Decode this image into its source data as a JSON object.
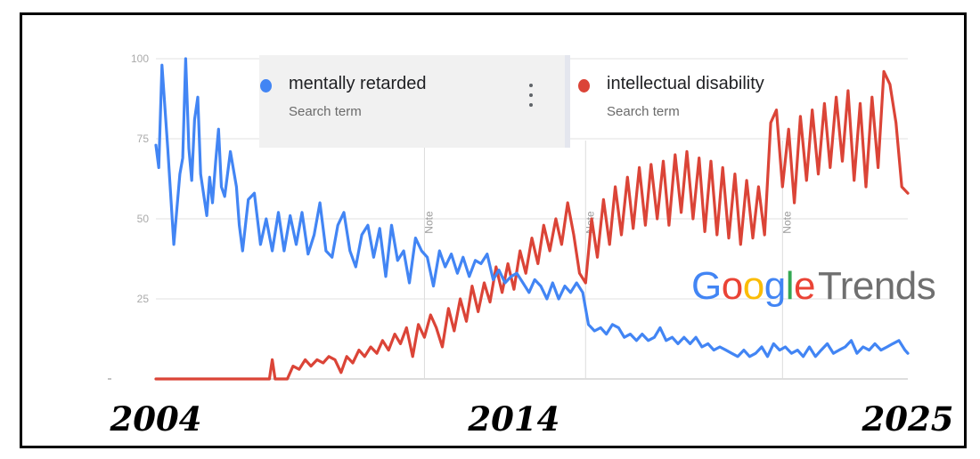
{
  "legend": [
    {
      "term": "mentally retarded",
      "subtitle": "Search term",
      "color": "#4285f4"
    },
    {
      "term": "intellectual disability",
      "subtitle": "Search term",
      "color": "#db4437"
    }
  ],
  "menu_icon": "more-vert-icon",
  "logo": {
    "google_letters": [
      "G",
      "o",
      "o",
      "g",
      "l",
      "e"
    ],
    "google_colors": [
      "#4285f4",
      "#ea4335",
      "#fbbc05",
      "#4285f4",
      "#34a853",
      "#ea4335"
    ],
    "trends": "Trends"
  },
  "year_labels": [
    {
      "text": "2004",
      "year": 2004.0
    },
    {
      "text": "2014",
      "year": 2014.0
    },
    {
      "text": "2025",
      "year": 2025.0
    }
  ],
  "chart_data": {
    "type": "line",
    "x_unit": "year",
    "xlim": [
      2004.0,
      2025.0
    ],
    "ylim": [
      0,
      100
    ],
    "y_ticks": [
      25,
      50,
      75,
      100
    ],
    "y_tick_labels": [
      "25",
      "50",
      "75",
      "100"
    ],
    "grid": true,
    "legend_position": "top",
    "notes": [
      {
        "label": "Note",
        "x": 2011.5
      },
      {
        "label": "Note",
        "x": 2016.0
      },
      {
        "label": "Note",
        "x": 2021.5
      }
    ],
    "series": [
      {
        "name": "mentally retarded",
        "color": "#4285f4",
        "points": [
          [
            2004.0,
            73
          ],
          [
            2004.08,
            66
          ],
          [
            2004.17,
            98
          ],
          [
            2004.33,
            72
          ],
          [
            2004.5,
            42
          ],
          [
            2004.67,
            64
          ],
          [
            2004.75,
            69
          ],
          [
            2004.83,
            100
          ],
          [
            2004.92,
            72
          ],
          [
            2005.0,
            62
          ],
          [
            2005.08,
            81
          ],
          [
            2005.17,
            88
          ],
          [
            2005.25,
            64
          ],
          [
            2005.42,
            51
          ],
          [
            2005.5,
            63
          ],
          [
            2005.58,
            55
          ],
          [
            2005.67,
            68
          ],
          [
            2005.75,
            78
          ],
          [
            2005.83,
            60
          ],
          [
            2005.92,
            57
          ],
          [
            2006.08,
            71
          ],
          [
            2006.25,
            60
          ],
          [
            2006.33,
            48
          ],
          [
            2006.42,
            40
          ],
          [
            2006.58,
            56
          ],
          [
            2006.75,
            58
          ],
          [
            2006.92,
            42
          ],
          [
            2007.08,
            50
          ],
          [
            2007.25,
            40
          ],
          [
            2007.42,
            52
          ],
          [
            2007.58,
            40
          ],
          [
            2007.75,
            51
          ],
          [
            2007.92,
            42
          ],
          [
            2008.08,
            52
          ],
          [
            2008.25,
            39
          ],
          [
            2008.42,
            45
          ],
          [
            2008.58,
            55
          ],
          [
            2008.75,
            40
          ],
          [
            2008.92,
            38
          ],
          [
            2009.08,
            48
          ],
          [
            2009.25,
            52
          ],
          [
            2009.42,
            40
          ],
          [
            2009.58,
            35
          ],
          [
            2009.75,
            45
          ],
          [
            2009.92,
            48
          ],
          [
            2010.08,
            38
          ],
          [
            2010.25,
            47
          ],
          [
            2010.42,
            32
          ],
          [
            2010.58,
            48
          ],
          [
            2010.75,
            37
          ],
          [
            2010.92,
            40
          ],
          [
            2011.08,
            30
          ],
          [
            2011.25,
            44
          ],
          [
            2011.42,
            40
          ],
          [
            2011.58,
            38
          ],
          [
            2011.75,
            29
          ],
          [
            2011.92,
            40
          ],
          [
            2012.08,
            35
          ],
          [
            2012.25,
            39
          ],
          [
            2012.42,
            33
          ],
          [
            2012.58,
            38
          ],
          [
            2012.75,
            32
          ],
          [
            2012.92,
            37
          ],
          [
            2013.08,
            36
          ],
          [
            2013.25,
            39
          ],
          [
            2013.42,
            31
          ],
          [
            2013.58,
            34
          ],
          [
            2013.75,
            30
          ],
          [
            2013.92,
            32
          ],
          [
            2014.08,
            33
          ],
          [
            2014.25,
            30
          ],
          [
            2014.42,
            27
          ],
          [
            2014.58,
            31
          ],
          [
            2014.75,
            29
          ],
          [
            2014.92,
            25
          ],
          [
            2015.08,
            30
          ],
          [
            2015.25,
            25
          ],
          [
            2015.42,
            29
          ],
          [
            2015.58,
            27
          ],
          [
            2015.75,
            30
          ],
          [
            2015.92,
            27
          ],
          [
            2016.08,
            17
          ],
          [
            2016.25,
            15
          ],
          [
            2016.42,
            16
          ],
          [
            2016.58,
            14
          ],
          [
            2016.75,
            17
          ],
          [
            2016.92,
            16
          ],
          [
            2017.08,
            13
          ],
          [
            2017.25,
            14
          ],
          [
            2017.42,
            12
          ],
          [
            2017.58,
            14
          ],
          [
            2017.75,
            12
          ],
          [
            2017.92,
            13
          ],
          [
            2018.08,
            16
          ],
          [
            2018.25,
            12
          ],
          [
            2018.42,
            13
          ],
          [
            2018.58,
            11
          ],
          [
            2018.75,
            13
          ],
          [
            2018.92,
            11
          ],
          [
            2019.08,
            13
          ],
          [
            2019.25,
            10
          ],
          [
            2019.42,
            11
          ],
          [
            2019.58,
            9
          ],
          [
            2019.75,
            10
          ],
          [
            2019.92,
            9
          ],
          [
            2020.08,
            8
          ],
          [
            2020.25,
            7
          ],
          [
            2020.42,
            9
          ],
          [
            2020.58,
            7
          ],
          [
            2020.75,
            8
          ],
          [
            2020.92,
            10
          ],
          [
            2021.08,
            7
          ],
          [
            2021.25,
            11
          ],
          [
            2021.42,
            9
          ],
          [
            2021.58,
            10
          ],
          [
            2021.75,
            8
          ],
          [
            2021.92,
            9
          ],
          [
            2022.08,
            7
          ],
          [
            2022.25,
            10
          ],
          [
            2022.42,
            7
          ],
          [
            2022.58,
            9
          ],
          [
            2022.75,
            11
          ],
          [
            2022.92,
            8
          ],
          [
            2023.08,
            9
          ],
          [
            2023.25,
            10
          ],
          [
            2023.42,
            12
          ],
          [
            2023.58,
            8
          ],
          [
            2023.75,
            10
          ],
          [
            2023.92,
            9
          ],
          [
            2024.08,
            11
          ],
          [
            2024.25,
            9
          ],
          [
            2024.42,
            10
          ],
          [
            2024.58,
            11
          ],
          [
            2024.75,
            12
          ],
          [
            2024.92,
            9
          ],
          [
            2025.0,
            8
          ]
        ]
      },
      {
        "name": "intellectual disability",
        "color": "#db4437",
        "points": [
          [
            2004.0,
            0
          ],
          [
            2004.5,
            0
          ],
          [
            2005.0,
            0
          ],
          [
            2005.5,
            0
          ],
          [
            2006.0,
            0
          ],
          [
            2006.5,
            0
          ],
          [
            2007.0,
            0
          ],
          [
            2007.17,
            0
          ],
          [
            2007.25,
            6
          ],
          [
            2007.33,
            0
          ],
          [
            2007.5,
            0
          ],
          [
            2007.67,
            0
          ],
          [
            2007.83,
            4
          ],
          [
            2008.0,
            3
          ],
          [
            2008.17,
            6
          ],
          [
            2008.33,
            4
          ],
          [
            2008.5,
            6
          ],
          [
            2008.67,
            5
          ],
          [
            2008.83,
            7
          ],
          [
            2009.0,
            6
          ],
          [
            2009.17,
            2
          ],
          [
            2009.33,
            7
          ],
          [
            2009.5,
            5
          ],
          [
            2009.67,
            9
          ],
          [
            2009.83,
            7
          ],
          [
            2010.0,
            10
          ],
          [
            2010.17,
            8
          ],
          [
            2010.33,
            12
          ],
          [
            2010.5,
            9
          ],
          [
            2010.67,
            14
          ],
          [
            2010.83,
            11
          ],
          [
            2011.0,
            16
          ],
          [
            2011.17,
            7
          ],
          [
            2011.33,
            17
          ],
          [
            2011.5,
            13
          ],
          [
            2011.67,
            20
          ],
          [
            2011.83,
            16
          ],
          [
            2012.0,
            10
          ],
          [
            2012.17,
            22
          ],
          [
            2012.33,
            15
          ],
          [
            2012.5,
            25
          ],
          [
            2012.67,
            18
          ],
          [
            2012.83,
            29
          ],
          [
            2013.0,
            21
          ],
          [
            2013.17,
            30
          ],
          [
            2013.33,
            24
          ],
          [
            2013.5,
            35
          ],
          [
            2013.67,
            27
          ],
          [
            2013.83,
            36
          ],
          [
            2014.0,
            28
          ],
          [
            2014.17,
            40
          ],
          [
            2014.33,
            33
          ],
          [
            2014.5,
            44
          ],
          [
            2014.67,
            36
          ],
          [
            2014.83,
            48
          ],
          [
            2015.0,
            40
          ],
          [
            2015.17,
            50
          ],
          [
            2015.33,
            42
          ],
          [
            2015.5,
            55
          ],
          [
            2015.67,
            45
          ],
          [
            2015.83,
            33
          ],
          [
            2016.0,
            30
          ],
          [
            2016.17,
            50
          ],
          [
            2016.33,
            38
          ],
          [
            2016.5,
            56
          ],
          [
            2016.67,
            42
          ],
          [
            2016.83,
            60
          ],
          [
            2017.0,
            45
          ],
          [
            2017.17,
            63
          ],
          [
            2017.33,
            47
          ],
          [
            2017.5,
            66
          ],
          [
            2017.67,
            48
          ],
          [
            2017.83,
            67
          ],
          [
            2018.0,
            50
          ],
          [
            2018.17,
            68
          ],
          [
            2018.33,
            48
          ],
          [
            2018.5,
            70
          ],
          [
            2018.67,
            52
          ],
          [
            2018.83,
            71
          ],
          [
            2019.0,
            50
          ],
          [
            2019.17,
            69
          ],
          [
            2019.33,
            46
          ],
          [
            2019.5,
            68
          ],
          [
            2019.67,
            45
          ],
          [
            2019.83,
            66
          ],
          [
            2020.0,
            44
          ],
          [
            2020.17,
            64
          ],
          [
            2020.33,
            42
          ],
          [
            2020.5,
            62
          ],
          [
            2020.67,
            44
          ],
          [
            2020.83,
            60
          ],
          [
            2021.0,
            45
          ],
          [
            2021.17,
            80
          ],
          [
            2021.33,
            84
          ],
          [
            2021.5,
            60
          ],
          [
            2021.67,
            78
          ],
          [
            2021.83,
            55
          ],
          [
            2022.0,
            82
          ],
          [
            2022.17,
            62
          ],
          [
            2022.33,
            84
          ],
          [
            2022.5,
            64
          ],
          [
            2022.67,
            86
          ],
          [
            2022.83,
            66
          ],
          [
            2023.0,
            88
          ],
          [
            2023.17,
            68
          ],
          [
            2023.33,
            90
          ],
          [
            2023.5,
            62
          ],
          [
            2023.67,
            86
          ],
          [
            2023.83,
            60
          ],
          [
            2024.0,
            88
          ],
          [
            2024.17,
            66
          ],
          [
            2024.33,
            96
          ],
          [
            2024.5,
            92
          ],
          [
            2024.67,
            80
          ],
          [
            2024.83,
            60
          ],
          [
            2025.0,
            58
          ]
        ]
      }
    ]
  }
}
